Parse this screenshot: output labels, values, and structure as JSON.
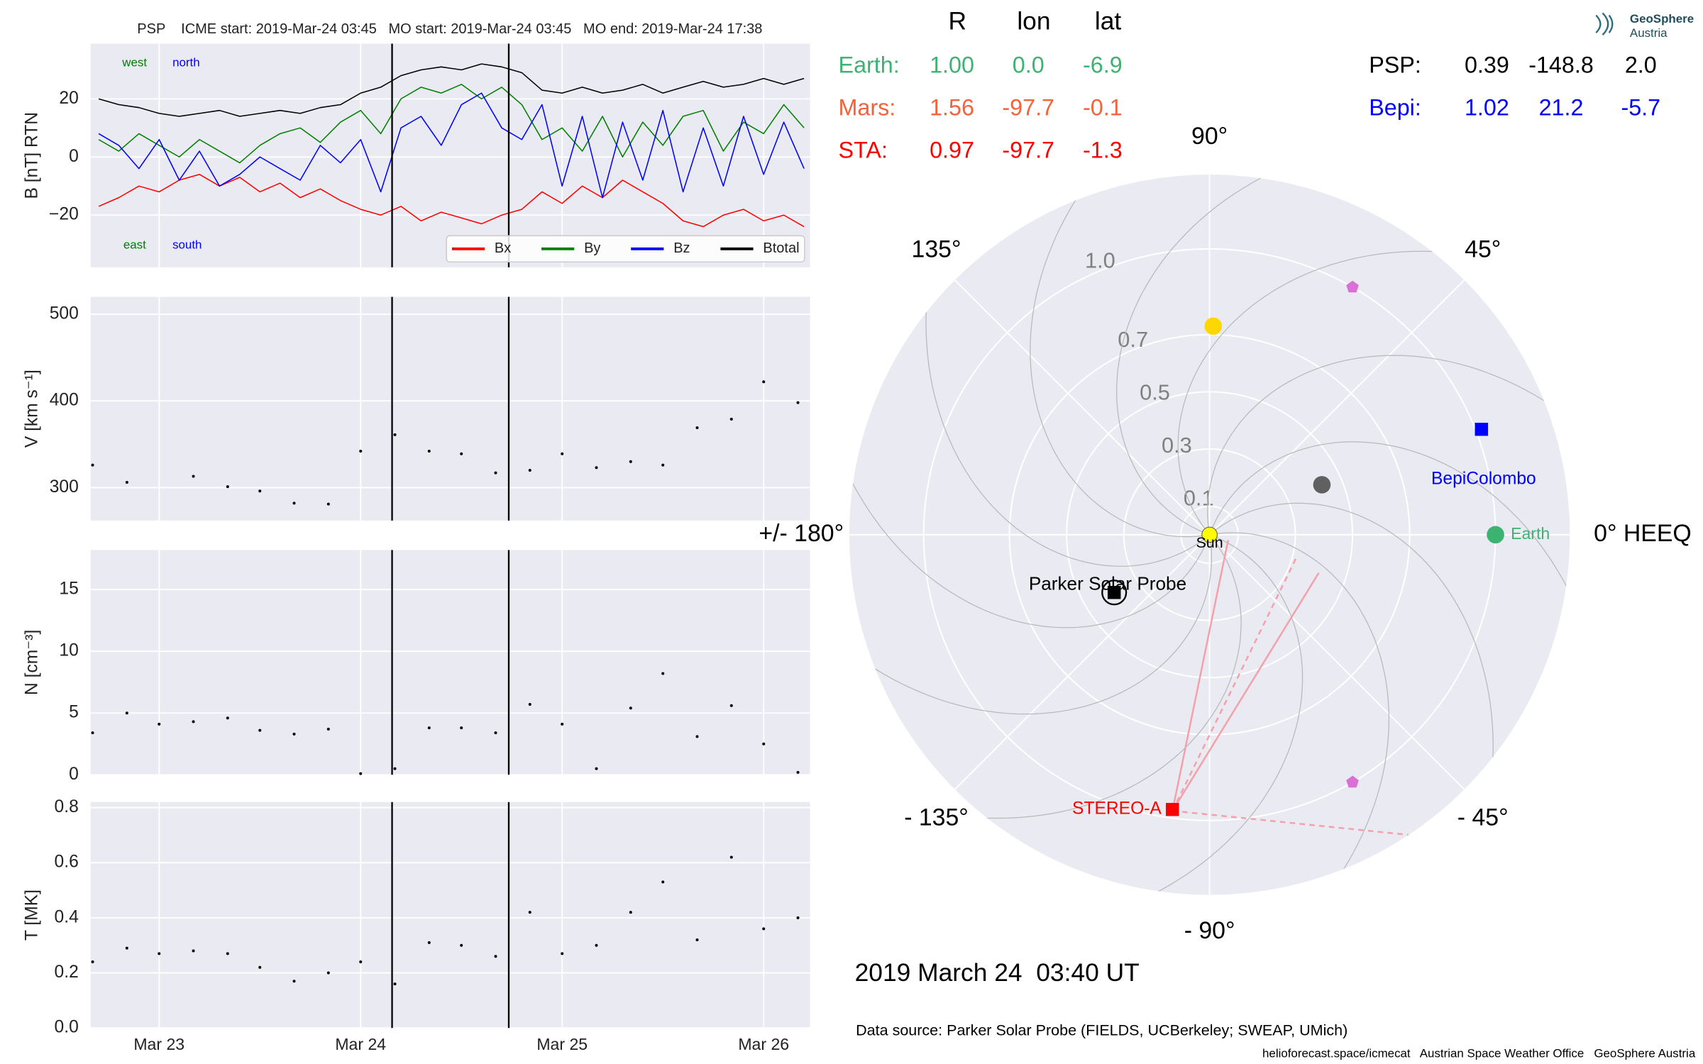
{
  "chart_data": [
    {
      "type": "line",
      "title": "PSP    ICME start: 2019-Mar-24 03:45   MO start: 2019-Mar-24 03:45   MO end: 2019-Mar-24 17:38",
      "ylabel": "B [nT] RTN",
      "xlim": [
        22.66,
        26.23
      ],
      "xticks": [
        23,
        24,
        25,
        26
      ],
      "ylim": [
        -38,
        39
      ],
      "yticks": [
        {
          "value": -20,
          "label": "−20"
        },
        0,
        20
      ],
      "grid": true,
      "legend": "lower right",
      "markers_x": [
        24.156,
        24.735
      ],
      "annotations": [
        {
          "text": "west",
          "color": "#008000"
        },
        {
          "text": "north",
          "color": "#0000ff"
        },
        {
          "text": "east",
          "color": "#008000"
        },
        {
          "text": "south",
          "color": "#0000ff"
        }
      ],
      "x": [
        22.7,
        22.8,
        22.9,
        23.0,
        23.1,
        23.2,
        23.3,
        23.4,
        23.5,
        23.6,
        23.7,
        23.8,
        23.9,
        24.0,
        24.1,
        24.2,
        24.3,
        24.4,
        24.5,
        24.6,
        24.7,
        24.8,
        24.9,
        25.0,
        25.1,
        25.2,
        25.3,
        25.4,
        25.5,
        25.6,
        25.7,
        25.8,
        25.9,
        26.0,
        26.1,
        26.2
      ],
      "series": [
        {
          "name": "Bx",
          "color": "#ff0000",
          "values": [
            -17,
            -14,
            -10,
            -12,
            -8,
            -6,
            -10,
            -7,
            -12,
            -9,
            -14,
            -11,
            -15,
            -18,
            -20,
            -17,
            -22,
            -19,
            -21,
            -23,
            -20,
            -18,
            -12,
            -16,
            -10,
            -14,
            -8,
            -12,
            -16,
            -22,
            -24,
            -20,
            -18,
            -22,
            -20,
            -24
          ]
        },
        {
          "name": "By",
          "color": "#008000",
          "values": [
            6,
            2,
            8,
            4,
            0,
            6,
            2,
            -2,
            4,
            8,
            10,
            5,
            12,
            16,
            8,
            20,
            24,
            22,
            25,
            20,
            24,
            18,
            6,
            10,
            2,
            14,
            0,
            12,
            4,
            14,
            16,
            2,
            12,
            8,
            18,
            10
          ]
        },
        {
          "name": "Bz",
          "color": "#0000ff",
          "values": [
            8,
            4,
            -4,
            6,
            -8,
            2,
            -10,
            -6,
            0,
            -4,
            -8,
            4,
            -2,
            6,
            -12,
            10,
            14,
            4,
            18,
            22,
            10,
            6,
            18,
            -10,
            14,
            -14,
            12,
            -8,
            16,
            -12,
            10,
            -10,
            14,
            -6,
            12,
            -4
          ]
        },
        {
          "name": "Btotal",
          "color": "#000000",
          "values": [
            20,
            18,
            17,
            15,
            14,
            15,
            16,
            14,
            15,
            16,
            15,
            17,
            18,
            22,
            24,
            28,
            30,
            31,
            30,
            32,
            31,
            29,
            23,
            22,
            24,
            22,
            23,
            25,
            22,
            24,
            26,
            24,
            25,
            27,
            25,
            27
          ]
        }
      ]
    },
    {
      "type": "scatter",
      "ylabel": "V [km s⁻¹]",
      "xlim": [
        22.66,
        26.23
      ],
      "xticks": [
        23,
        24,
        25,
        26
      ],
      "ylim": [
        262,
        520
      ],
      "yticks": [
        300,
        400,
        500
      ],
      "grid": true,
      "x": [
        22.67,
        22.84,
        23.17,
        23.34,
        23.5,
        23.67,
        23.84,
        24.0,
        24.17,
        24.34,
        24.5,
        24.67,
        24.84,
        25.0,
        25.17,
        25.34,
        25.5,
        25.67,
        25.84,
        26.0,
        26.17
      ],
      "values": [
        326,
        306,
        313,
        301,
        296,
        282,
        281,
        342,
        361,
        342,
        339,
        317,
        320,
        339,
        323,
        330,
        326,
        369,
        379,
        422,
        398
      ]
    },
    {
      "type": "scatter",
      "ylabel": "N [cm⁻³]",
      "xlim": [
        22.66,
        26.23
      ],
      "xticks": [
        23,
        24,
        25,
        26
      ],
      "ylim": [
        0,
        18.2
      ],
      "yticks": [
        0,
        5,
        10,
        15
      ],
      "grid": true,
      "x": [
        22.67,
        22.84,
        23.0,
        23.17,
        23.34,
        23.5,
        23.67,
        23.84,
        24.0,
        24.17,
        24.34,
        24.5,
        24.67,
        24.84,
        25.0,
        25.17,
        25.34,
        25.5,
        25.67,
        25.84,
        26.0,
        26.17
      ],
      "values": [
        3.4,
        5.0,
        4.1,
        4.3,
        4.6,
        3.6,
        3.3,
        3.7,
        0.1,
        0.5,
        3.8,
        3.8,
        3.4,
        5.7,
        4.1,
        0.5,
        5.4,
        8.2,
        3.1,
        5.6,
        2.5,
        0.2
      ]
    },
    {
      "type": "scatter",
      "ylabel": "T [MK]",
      "xlim": [
        22.66,
        26.23
      ],
      "xticks": [
        {
          "value": 23,
          "label": "Mar 23"
        },
        {
          "value": 24,
          "label": "Mar 24"
        },
        {
          "value": 25,
          "label": "Mar 25"
        },
        {
          "value": 26,
          "label": "Mar 26"
        }
      ],
      "ylim": [
        0,
        0.82
      ],
      "yticks": [
        {
          "value": 0,
          "label": "0.0"
        },
        0.2,
        0.4,
        0.6,
        0.8
      ],
      "grid": true,
      "x": [
        22.67,
        22.84,
        23.0,
        23.17,
        23.34,
        23.5,
        23.67,
        23.84,
        24.0,
        24.17,
        24.34,
        24.5,
        24.67,
        24.84,
        25.0,
        25.17,
        25.34,
        25.5,
        25.67,
        25.84,
        26.0,
        26.17
      ],
      "values": [
        0.24,
        0.29,
        0.27,
        0.28,
        0.27,
        0.22,
        0.17,
        0.2,
        0.24,
        0.16,
        0.31,
        0.3,
        0.26,
        0.42,
        0.27,
        0.3,
        0.42,
        0.53,
        0.32,
        0.62,
        0.36,
        0.4
      ]
    },
    {
      "type": "polar",
      "rlim": [
        0,
        1.26
      ],
      "rticks": [
        0.1,
        0.3,
        0.5,
        0.7,
        {
          "value": 1,
          "label": "1.0"
        }
      ],
      "thetaticks": [
        {
          "value": 0,
          "label": "0° HEEQ"
        },
        {
          "value": 45,
          "label": "45°"
        },
        {
          "value": 90,
          "label": "90°"
        },
        {
          "value": 135,
          "label": "135°"
        },
        {
          "value": 180,
          "label": "+/- 180°"
        },
        {
          "value": -135,
          "label": "- 135°"
        },
        {
          "value": -90,
          "label": "- 90°"
        },
        {
          "value": -45,
          "label": "- 45°"
        }
      ],
      "columns": [
        "R",
        "lon",
        "lat"
      ],
      "positions": [
        {
          "label": "Earth:",
          "plot_label": "Earth",
          "color": "#3cb371",
          "marker": "circle",
          "values": [
            1.0,
            0.0,
            -6.9
          ],
          "value_labels": [
            "1.00",
            "0.0",
            "-6.9"
          ]
        },
        {
          "label": "Mars:",
          "color": "#f4623a",
          "marker": "circle",
          "values": [
            1.56,
            -97.7,
            -0.1
          ],
          "value_labels": [
            "1.56",
            "-97.7",
            "-0.1"
          ]
        },
        {
          "label": "STA:",
          "plot_label": "STEREO-A",
          "color": "#ff0000",
          "marker": "square",
          "values": [
            0.97,
            -97.7,
            -1.3
          ],
          "value_labels": [
            "0.97",
            "-97.7",
            "-1.3"
          ]
        },
        {
          "label": "PSP:",
          "plot_label": "Parker Solar Probe",
          "color": "#000000",
          "marker": "square-ring",
          "values": [
            0.39,
            -148.8,
            2.0
          ],
          "value_labels": [
            "0.39",
            "-148.8",
            "2.0"
          ]
        },
        {
          "label": "Bepi:",
          "plot_label": "BepiColombo",
          "color": "#0000ff",
          "marker": "square",
          "values": [
            1.02,
            21.2,
            -5.7
          ],
          "value_labels": [
            "1.02",
            "21.2",
            "-5.7"
          ]
        }
      ],
      "other_points": [
        {
          "r": 0.73,
          "lon": 89,
          "color": "#ffd700",
          "marker": "circle"
        },
        {
          "r": 0.43,
          "lon": 24,
          "color": "#606060",
          "marker": "circle"
        },
        {
          "r": 1.0,
          "lon": 60,
          "color": "#da70d6",
          "marker": "pentagon"
        },
        {
          "r": 1.0,
          "lon": -60,
          "color": "#da70d6",
          "marker": "pentagon"
        }
      ],
      "sun_label": "Sun",
      "time": "2019 March 24  03:40 UT"
    }
  ],
  "source": "Data source: Parker Solar Probe (FIELDS, UCBerkeley; SWEAP, UMich)",
  "footer": "helioforecast.space/icmecat   Austrian Space Weather Office   GeoSphere Austria",
  "logo": {
    "line1": "GeoSphere",
    "line2": "Austria"
  }
}
